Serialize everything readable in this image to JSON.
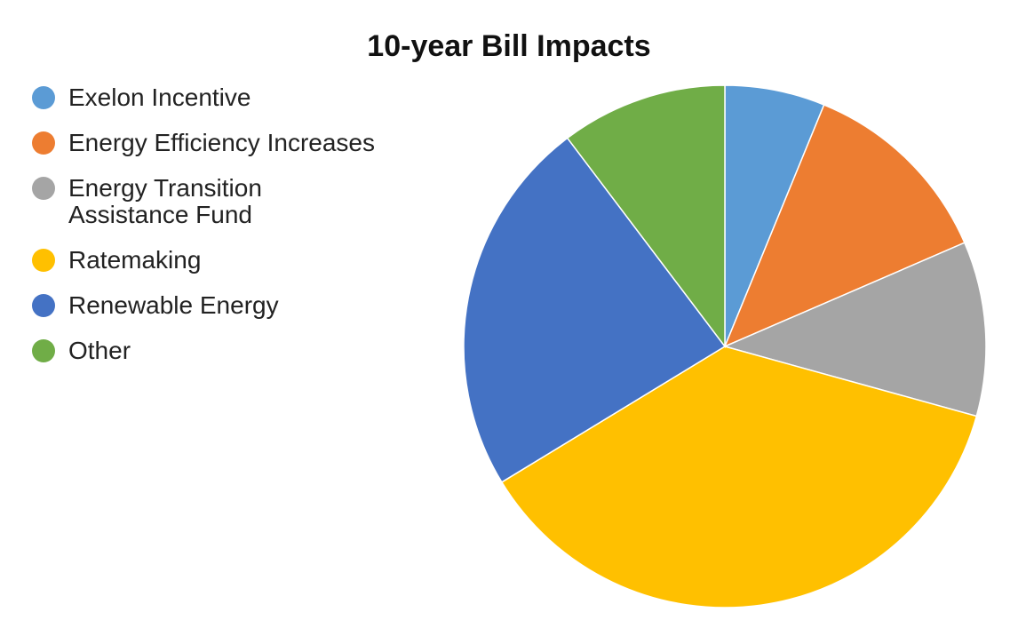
{
  "chart_data": {
    "type": "pie",
    "title": "10-year Bill Impacts",
    "legend_position": "left",
    "slices": [
      {
        "name": "Exelon Incentive",
        "value": 6.2,
        "color": "#5B9BD5"
      },
      {
        "name": "Energy Efficiency Increases",
        "value": 12.3,
        "color": "#ED7D31"
      },
      {
        "name": "Energy Transition Assistance Fund",
        "value": 10.8,
        "color": "#A5A5A5"
      },
      {
        "name": "Ratemaking",
        "value": 37.0,
        "color": "#FFC000"
      },
      {
        "name": "Renewable Energy",
        "value": 23.4,
        "color": "#4472C4"
      },
      {
        "name": "Other",
        "value": 10.3,
        "color": "#70AD47"
      }
    ]
  },
  "legend": {
    "items": [
      {
        "label": "Exelon Incentive",
        "color": "#5B9BD5"
      },
      {
        "label": "Energy Efficiency Increases",
        "color": "#ED7D31"
      },
      {
        "label": "Energy Transition Assistance Fund",
        "color": "#A5A5A5"
      },
      {
        "label": "Ratemaking",
        "color": "#FFC000"
      },
      {
        "label": "Renewable Energy",
        "color": "#4472C4"
      },
      {
        "label": "Other",
        "color": "#70AD47"
      }
    ]
  }
}
